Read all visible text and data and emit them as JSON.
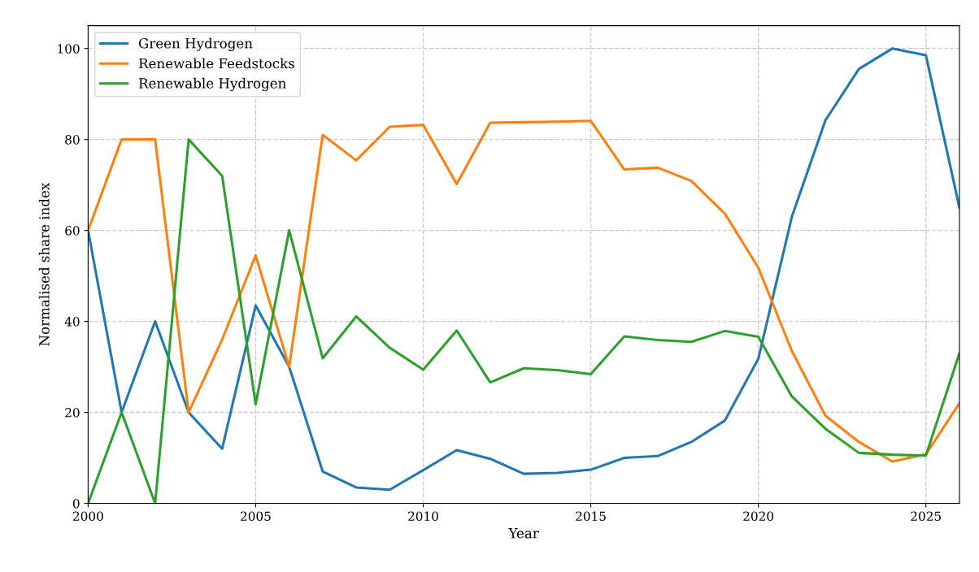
{
  "chart_data": {
    "type": "line",
    "xlabel": "Year",
    "ylabel": "Normalised share index",
    "x": [
      2000,
      2001,
      2002,
      2003,
      2004,
      2005,
      2006,
      2007,
      2008,
      2009,
      2010,
      2011,
      2012,
      2013,
      2014,
      2015,
      2016,
      2017,
      2018,
      2019,
      2020,
      2021,
      2022,
      2023,
      2024,
      2025,
      2026
    ],
    "series": [
      {
        "name": "Green Hydrogen",
        "color": "#1f77b4",
        "values": [
          60,
          20,
          40,
          20,
          12,
          43.5,
          30,
          7,
          3.5,
          3,
          7.3,
          11.7,
          9.8,
          6.5,
          6.7,
          7.4,
          10,
          10.4,
          13.5,
          18.2,
          31.8,
          63,
          84.2,
          95.5,
          100,
          98.5,
          65
        ]
      },
      {
        "name": "Renewable Feedstocks",
        "color": "#ff7f0e",
        "values": [
          60,
          80,
          80,
          20,
          36,
          54.5,
          30,
          81,
          75.4,
          82.8,
          83.2,
          70.2,
          83.7,
          83.8,
          83.9,
          84.1,
          73.4,
          73.8,
          70.9,
          63.7,
          51.8,
          33.5,
          19.3,
          13.5,
          9.2,
          10.8,
          22
        ]
      },
      {
        "name": "Renewable Hydrogen",
        "color": "#2ca02c",
        "values": [
          0,
          20,
          0,
          80,
          72,
          21.8,
          60,
          31.9,
          41.1,
          34.2,
          29.4,
          38,
          26.6,
          29.7,
          29.3,
          28.4,
          36.7,
          35.9,
          35.5,
          37.9,
          36.6,
          23.5,
          16.4,
          11.1,
          10.7,
          10.5,
          33
        ]
      }
    ],
    "xlim": [
      2000,
      2026
    ],
    "xticks": [
      2000,
      2005,
      2010,
      2015,
      2020,
      2025
    ],
    "ylim": [
      0,
      105
    ],
    "yticks": [
      0,
      20,
      40,
      60,
      80,
      100
    ],
    "grid": true,
    "legend": "top left",
    "line_style": "solid",
    "marker": "none"
  }
}
